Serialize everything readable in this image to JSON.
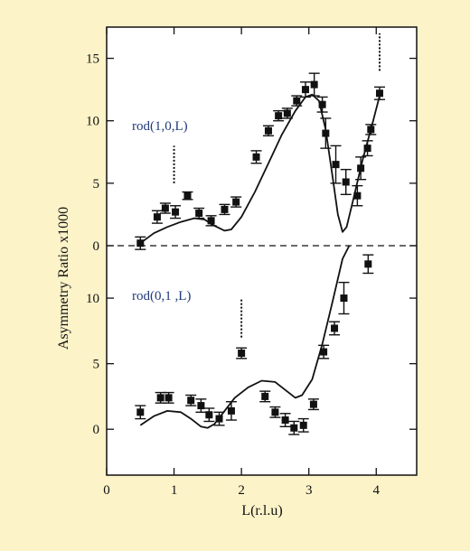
{
  "chart_data": {
    "type": "scatter",
    "xlabel": "L(r.l.u)",
    "ylabel": "Asymmetry Ratio x1000",
    "xlim": [
      0,
      4.6
    ],
    "x_ticks": [
      0,
      1,
      2,
      3,
      4
    ],
    "grid": false,
    "legend": "none",
    "colors": {
      "background": "#fdf3c9",
      "plot_bg": "#ffffff",
      "marker": "#111111",
      "annotation_text": "#223a7a"
    },
    "panels": [
      {
        "name": "rod(1,0,L)",
        "label": "rod(1,0,L)",
        "ylim": [
          0,
          17.5
        ],
        "y_ticks": [
          0,
          5,
          10,
          15
        ],
        "marker_line_L": 1.0,
        "marker_line_range": [
          5.0,
          8.0
        ],
        "top_marker_L": 4.05,
        "top_marker_range": [
          14.0,
          17.0
        ],
        "points": [
          {
            "L": 0.5,
            "y": 0.2,
            "err": 0.5
          },
          {
            "L": 0.75,
            "y": 2.3,
            "err": 0.5
          },
          {
            "L": 0.87,
            "y": 3.0,
            "err": 0.4
          },
          {
            "L": 1.02,
            "y": 2.7,
            "err": 0.5
          },
          {
            "L": 1.2,
            "y": 4.0,
            "err": 0.3
          },
          {
            "L": 1.37,
            "y": 2.6,
            "err": 0.4
          },
          {
            "L": 1.55,
            "y": 2.0,
            "err": 0.4
          },
          {
            "L": 1.75,
            "y": 2.9,
            "err": 0.4
          },
          {
            "L": 1.92,
            "y": 3.5,
            "err": 0.4
          },
          {
            "L": 2.22,
            "y": 7.1,
            "err": 0.5
          },
          {
            "L": 2.4,
            "y": 9.2,
            "err": 0.4
          },
          {
            "L": 2.55,
            "y": 10.4,
            "err": 0.4
          },
          {
            "L": 2.68,
            "y": 10.6,
            "err": 0.4
          },
          {
            "L": 2.82,
            "y": 11.6,
            "err": 0.4
          },
          {
            "L": 2.95,
            "y": 12.5,
            "err": 0.6
          },
          {
            "L": 3.08,
            "y": 12.9,
            "err": 0.9
          },
          {
            "L": 3.2,
            "y": 11.3,
            "err": 0.6
          },
          {
            "L": 3.25,
            "y": 9.0,
            "err": 1.2
          },
          {
            "L": 3.4,
            "y": 6.5,
            "err": 1.5
          },
          {
            "L": 3.55,
            "y": 5.1,
            "err": 1.0
          },
          {
            "L": 3.72,
            "y": 4.0,
            "err": 0.8
          },
          {
            "L": 3.77,
            "y": 6.2,
            "err": 0.9
          },
          {
            "L": 3.87,
            "y": 7.8,
            "err": 0.6
          },
          {
            "L": 3.92,
            "y": 9.3,
            "err": 0.4
          },
          {
            "L": 4.05,
            "y": 12.2,
            "err": 0.5
          }
        ],
        "fit": [
          [
            0.5,
            0.2
          ],
          [
            0.7,
            1.0
          ],
          [
            0.9,
            1.5
          ],
          [
            1.1,
            1.9
          ],
          [
            1.3,
            2.2
          ],
          [
            1.45,
            2.1
          ],
          [
            1.6,
            1.6
          ],
          [
            1.75,
            1.2
          ],
          [
            1.85,
            1.3
          ],
          [
            2.0,
            2.3
          ],
          [
            2.2,
            4.3
          ],
          [
            2.4,
            6.6
          ],
          [
            2.6,
            8.9
          ],
          [
            2.8,
            10.8
          ],
          [
            2.95,
            11.9
          ],
          [
            3.05,
            12.1
          ],
          [
            3.15,
            11.6
          ],
          [
            3.25,
            9.3
          ],
          [
            3.35,
            5.6
          ],
          [
            3.43,
            2.5
          ],
          [
            3.5,
            1.1
          ],
          [
            3.56,
            1.5
          ],
          [
            3.65,
            3.5
          ],
          [
            3.8,
            6.9
          ],
          [
            3.95,
            9.9
          ],
          [
            4.05,
            12.0
          ]
        ]
      },
      {
        "name": "rod(0,1,L)",
        "label": "rod(0,1 ,L)",
        "ylim": [
          -3.5,
          14
        ],
        "y_ticks": [
          0,
          5,
          10
        ],
        "marker_line_L": 2.0,
        "marker_line_range": [
          7.0,
          10.0
        ],
        "points": [
          {
            "L": 0.5,
            "y": 1.3,
            "err": 0.5
          },
          {
            "L": 0.8,
            "y": 2.4,
            "err": 0.4
          },
          {
            "L": 0.92,
            "y": 2.4,
            "err": 0.4
          },
          {
            "L": 1.25,
            "y": 2.2,
            "err": 0.4
          },
          {
            "L": 1.4,
            "y": 1.8,
            "err": 0.5
          },
          {
            "L": 1.52,
            "y": 1.1,
            "err": 0.5
          },
          {
            "L": 1.67,
            "y": 0.8,
            "err": 0.5
          },
          {
            "L": 1.85,
            "y": 1.4,
            "err": 0.7
          },
          {
            "L": 2.0,
            "y": 5.8,
            "err": 0.4
          },
          {
            "L": 2.35,
            "y": 2.5,
            "err": 0.4
          },
          {
            "L": 2.5,
            "y": 1.3,
            "err": 0.4
          },
          {
            "L": 2.65,
            "y": 0.7,
            "err": 0.5
          },
          {
            "L": 2.78,
            "y": 0.1,
            "err": 0.5
          },
          {
            "L": 2.92,
            "y": 0.3,
            "err": 0.5
          },
          {
            "L": 3.07,
            "y": 1.9,
            "err": 0.4
          },
          {
            "L": 3.22,
            "y": 5.9,
            "err": 0.5
          },
          {
            "L": 3.38,
            "y": 7.7,
            "err": 0.5
          },
          {
            "L": 3.52,
            "y": 10.0,
            "err": 1.2
          },
          {
            "L": 3.88,
            "y": 12.6,
            "err": 0.7
          }
        ],
        "fit": [
          [
            0.5,
            0.3
          ],
          [
            0.7,
            1.0
          ],
          [
            0.9,
            1.4
          ],
          [
            1.1,
            1.3
          ],
          [
            1.25,
            0.8
          ],
          [
            1.4,
            0.2
          ],
          [
            1.5,
            0.1
          ],
          [
            1.6,
            0.4
          ],
          [
            1.75,
            1.4
          ],
          [
            1.9,
            2.4
          ],
          [
            2.1,
            3.2
          ],
          [
            2.3,
            3.7
          ],
          [
            2.5,
            3.6
          ],
          [
            2.65,
            3.0
          ],
          [
            2.8,
            2.4
          ],
          [
            2.9,
            2.6
          ],
          [
            3.05,
            3.8
          ],
          [
            3.2,
            6.5
          ],
          [
            3.35,
            9.7
          ],
          [
            3.5,
            13.0
          ],
          [
            3.6,
            14.0
          ]
        ]
      }
    ]
  }
}
